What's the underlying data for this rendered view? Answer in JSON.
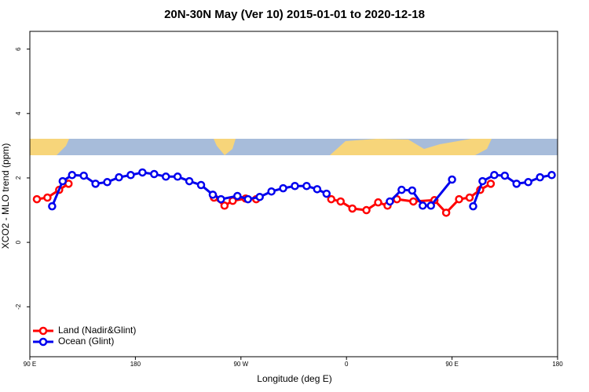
{
  "chart_data": {
    "type": "line",
    "title": "20N-30N May (Ver 10)   2015-01-01 to 2020-12-18",
    "x_label": "Longitude (deg E)",
    "y_label": "XCO2 - MLO trend (ppm)",
    "xlim": [
      90,
      540
    ],
    "xticks": [
      {
        "value": 90,
        "label": "90 E"
      },
      180,
      {
        "value": 270,
        "label": "90 W"
      },
      {
        "value": 360,
        "label": "0"
      },
      {
        "value": 450,
        "label": "90 E"
      },
      {
        "value": 540,
        "label": "180"
      }
    ],
    "ylim": [
      -3.55,
      6.55
    ],
    "yticks": [
      -2,
      0,
      2,
      4,
      6
    ],
    "legend": "bottom-left",
    "series": [
      {
        "name": "Land (Nadir&Glint)",
        "color": "#ff0000",
        "x": [
          96,
          105,
          115,
          123,
          null,
          247,
          256,
          263,
          274,
          283,
          null,
          347,
          355,
          365,
          377,
          387,
          395,
          403,
          417,
          435,
          445,
          456,
          465,
          474,
          483
        ],
        "values": [
          1.34,
          1.39,
          1.63,
          1.82,
          null,
          1.39,
          1.14,
          1.29,
          1.36,
          1.34,
          null,
          1.34,
          1.27,
          1.05,
          1.0,
          1.24,
          1.14,
          1.34,
          1.27,
          1.31,
          0.92,
          1.34,
          1.39,
          1.63,
          1.82
        ]
      },
      {
        "name": "Ocean (Glint)",
        "color": "#0000ee",
        "x": [
          109,
          118,
          126,
          136,
          146,
          156,
          166,
          176,
          186,
          196,
          206,
          216,
          226,
          236,
          246,
          253,
          267,
          276,
          286,
          296,
          306,
          316,
          326,
          335,
          343,
          null,
          397,
          407,
          416,
          425,
          432,
          450,
          null,
          468,
          476,
          486,
          495,
          505,
          515,
          525,
          535
        ],
        "values": [
          1.12,
          1.9,
          2.09,
          2.07,
          1.82,
          1.87,
          2.02,
          2.09,
          2.17,
          2.12,
          2.04,
          2.04,
          1.9,
          1.78,
          1.48,
          1.34,
          1.44,
          1.34,
          1.41,
          1.58,
          1.68,
          1.75,
          1.75,
          1.65,
          1.51,
          null,
          1.27,
          1.63,
          1.61,
          1.14,
          1.14,
          1.95,
          null,
          1.12,
          1.9,
          2.09,
          2.07,
          1.82,
          1.87,
          2.02,
          2.09
        ]
      }
    ]
  }
}
